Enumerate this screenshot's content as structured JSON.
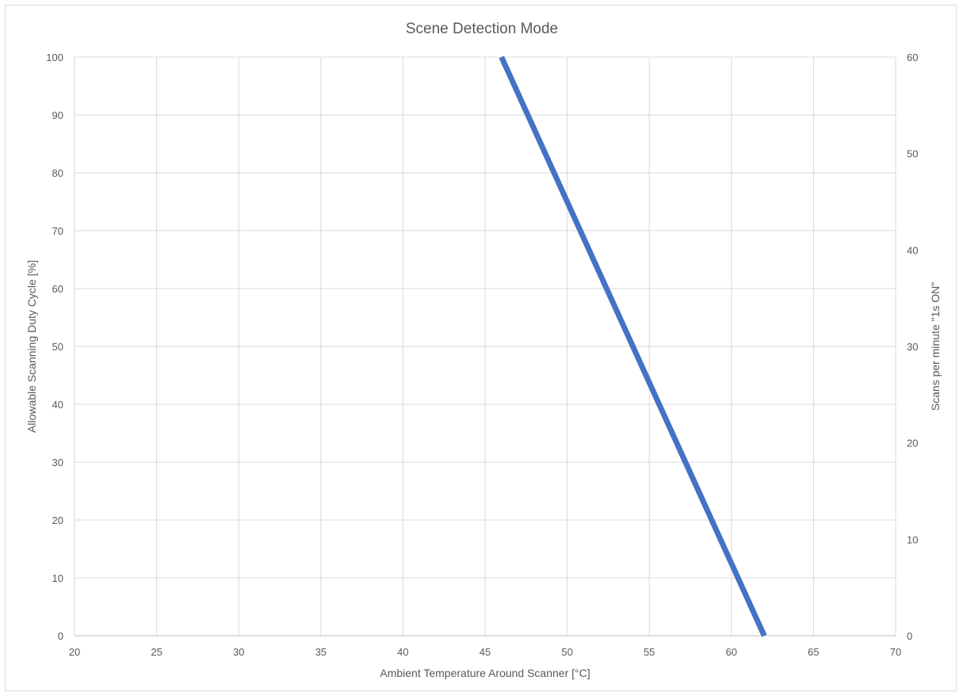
{
  "chart_data": {
    "type": "line",
    "title": "Scene Detection Mode",
    "xlabel": "Ambient Temperature Around Scanner [°C]",
    "ylabel": "Allowable Scanning Duty Cycle [%]",
    "y2label": "Scans per minute \"1s ON\"",
    "xlim": [
      20,
      70
    ],
    "ylim": [
      0,
      100
    ],
    "y2lim": [
      0,
      60
    ],
    "x_ticks": [
      20,
      25,
      30,
      35,
      40,
      45,
      50,
      55,
      60,
      65,
      70
    ],
    "y_ticks": [
      0,
      10,
      20,
      30,
      40,
      50,
      60,
      70,
      80,
      90,
      100
    ],
    "y2_ticks": [
      0,
      10,
      20,
      30,
      40,
      50,
      60
    ],
    "grid": true,
    "legend": "none",
    "series": [
      {
        "color": "#4472c4",
        "x": [
          46,
          62
        ],
        "y": [
          100,
          0
        ]
      }
    ]
  }
}
